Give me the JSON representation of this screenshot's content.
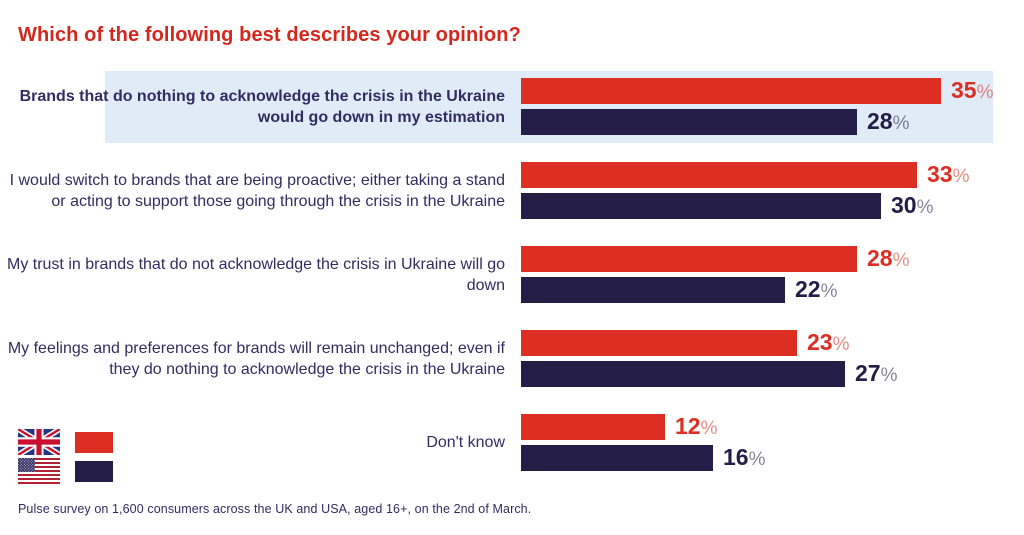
{
  "title": "Which of the following best describes your opinion?",
  "footer": "Pulse survey on 1,600 consumers across the UK and USA, aged 16+, on the 2nd of March.",
  "colors": {
    "title": "#d4281e",
    "uk_bar": "#dc2e22",
    "usa_bar": "#241d47",
    "label_text": "#322c62",
    "highlight_bg": "#dfebf6"
  },
  "legend": {
    "entries": [
      {
        "country": "UK",
        "flag": "uk-flag",
        "swatch_color_name": "red"
      },
      {
        "country": "USA",
        "flag": "usa-flag",
        "swatch_color_name": "navy"
      }
    ]
  },
  "chart_data": {
    "type": "bar",
    "orientation": "horizontal",
    "unit": "%",
    "title": "Which of the following best describes your opinion?",
    "categories": [
      "Brands that do nothing to acknowledge the crisis in the Ukraine would go down in my estimation",
      "I would switch to brands that are being proactive; either taking a stand or acting to support those going through the crisis in the Ukraine",
      "My trust in brands that do not acknowledge the crisis in Ukraine will go down",
      "My feelings and preferences for brands will remain unchanged; even if they do nothing to acknowledge the crisis in the Ukraine",
      "Don't know"
    ],
    "series": [
      {
        "name": "UK",
        "values": [
          35,
          33,
          28,
          23,
          12
        ]
      },
      {
        "name": "USA",
        "values": [
          28,
          30,
          22,
          27,
          16
        ]
      }
    ],
    "highlighted_category_index": 0,
    "xlim": [
      0,
      35
    ],
    "grid": false,
    "legend_position": "bottom-left",
    "value_labels_shown": true
  }
}
